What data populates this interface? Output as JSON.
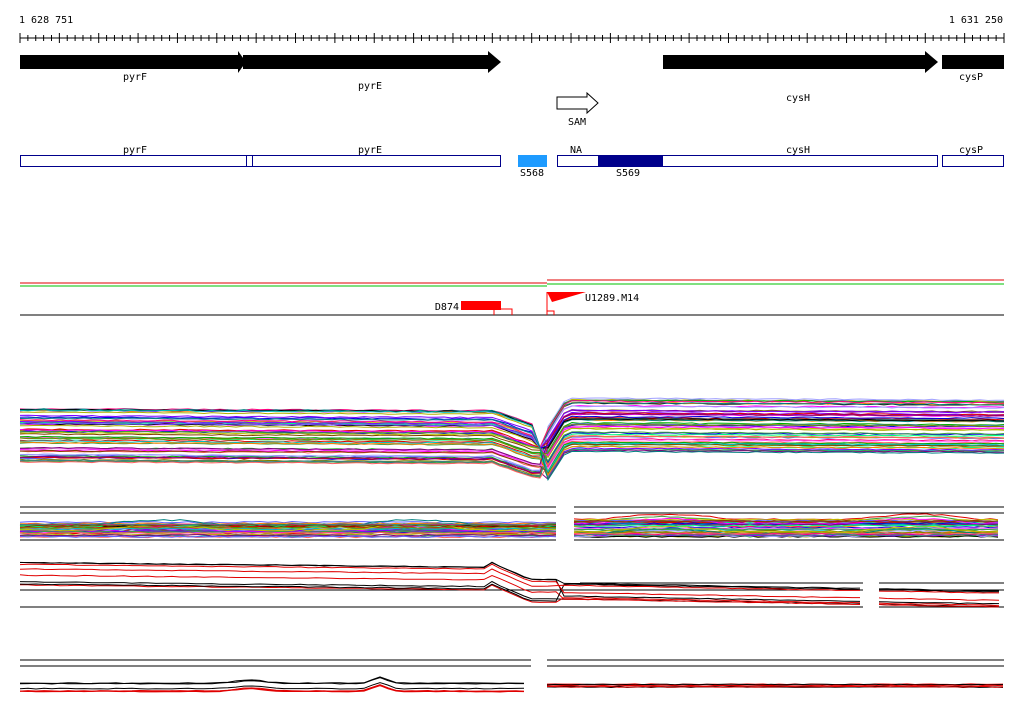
{
  "coordinates": {
    "start": "1 628 751",
    "end": "1 631 250"
  },
  "genes": [
    {
      "name": "pyrF",
      "strand": "+"
    },
    {
      "name": "pyrE",
      "strand": "+"
    },
    {
      "name": "cysH",
      "strand": "+"
    },
    {
      "name": "cysP",
      "strand": "+"
    }
  ],
  "riboswitch": {
    "name": "SAM"
  },
  "transcripts": {
    "labels": [
      "pyrF",
      "pyrE",
      "NA",
      "cysH",
      "cysP"
    ],
    "segments": [
      {
        "name": "S568",
        "color": "#1e9bff"
      },
      {
        "name": "S569",
        "color": "#00008b"
      }
    ]
  },
  "tss": [
    {
      "name": "D874",
      "color": "#ff0000"
    },
    {
      "name": "U1289.M14",
      "color": "#ff0000"
    }
  ],
  "colors": {
    "feature_outline": "#00008b",
    "gene_arrow": "#000000",
    "trace_red": "#e00000",
    "trace_green": "#00c000"
  }
}
